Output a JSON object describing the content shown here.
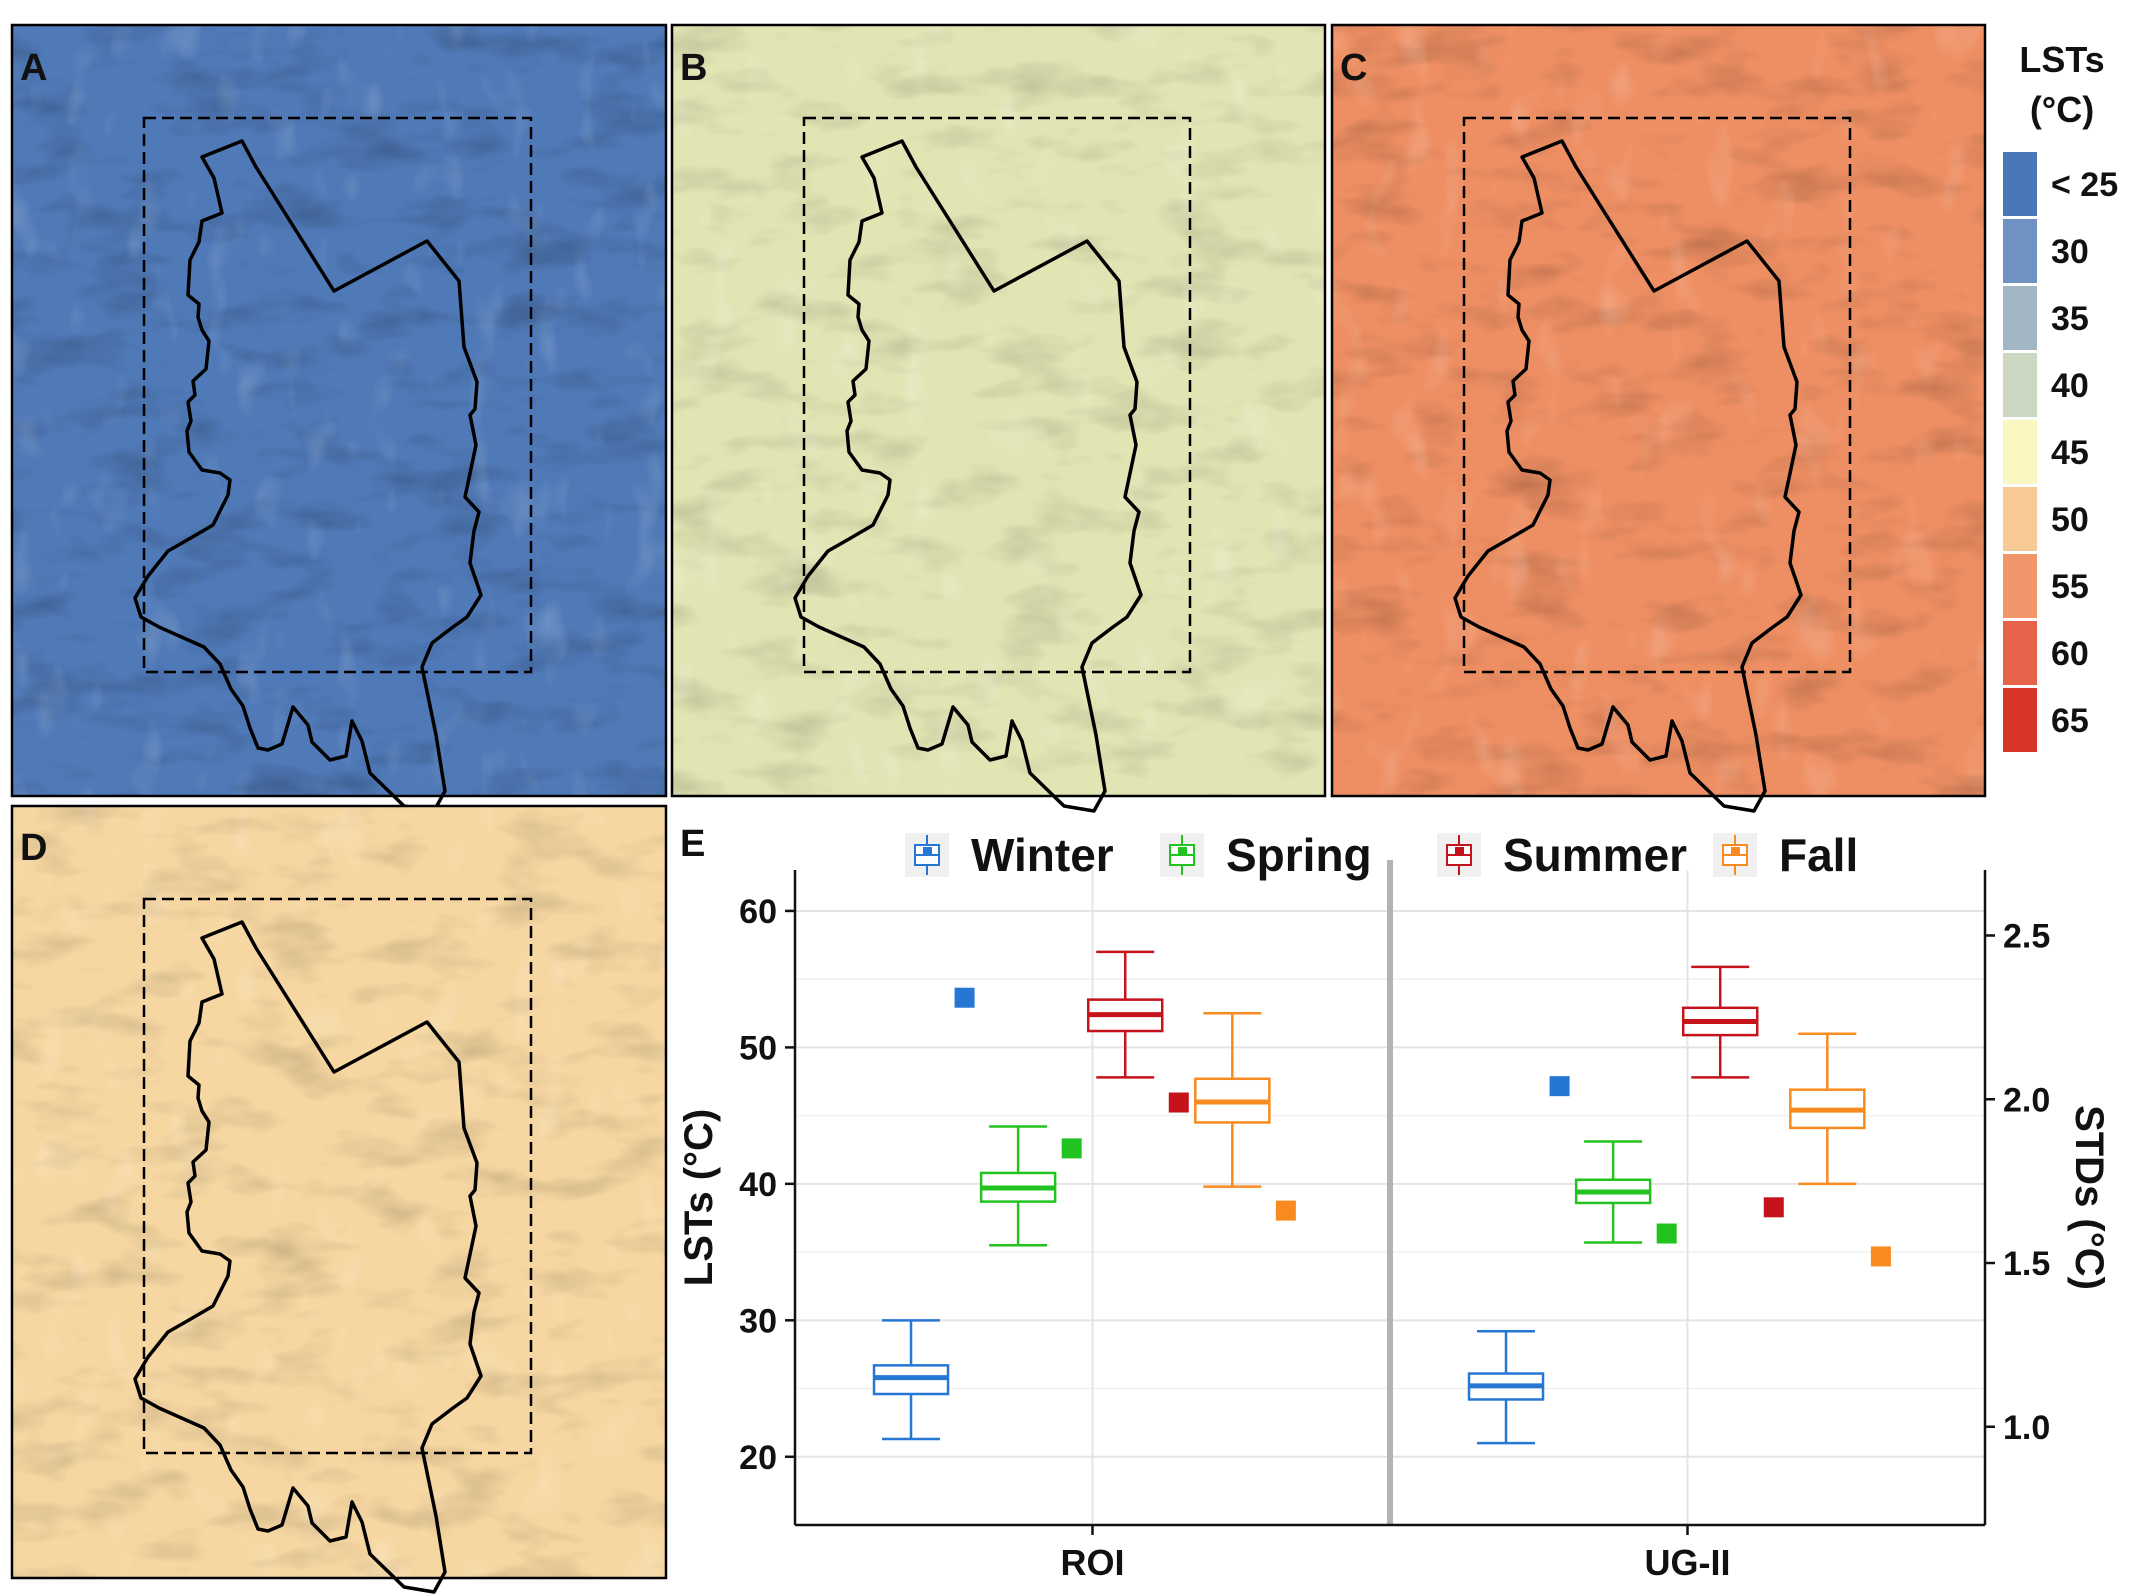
{
  "panels": {
    "a": {
      "letter": "A"
    },
    "b": {
      "letter": "B"
    },
    "c": {
      "letter": "C"
    },
    "d": {
      "letter": "D"
    },
    "e": {
      "letter": "E"
    }
  },
  "colorbar": {
    "title_line1": "LSTs",
    "title_line2": "(°C)",
    "labels": [
      "< 25",
      "30",
      "35",
      "40",
      "45",
      "50",
      "55",
      "60",
      "65"
    ],
    "colors": [
      "#4a77b9",
      "#6f92c3",
      "#a3b6c4",
      "#ccd8c1",
      "#fbf7c3",
      "#f7c996",
      "#f0966a",
      "#e56348",
      "#d63528"
    ]
  },
  "map_colors": {
    "a": {
      "base": "#4f79b7",
      "dark": "#3f6db5",
      "light": "#8fa9c4"
    },
    "b": {
      "base": "#e2e4b4",
      "dark": "#b9c8be",
      "light": "#f6f1bd"
    },
    "c": {
      "base": "#ee8f63",
      "dark": "#e4664a",
      "light": "#f5c28e"
    },
    "d": {
      "base": "#f6d7a2",
      "dark": "#f0a36f",
      "light": "#f5e5b6"
    }
  },
  "chart_data": {
    "type": "box",
    "legend": [
      "Winter",
      "Spring",
      "Summer",
      "Fall"
    ],
    "legend_position": "top",
    "season_colors": {
      "Winter": "#2677d4",
      "Spring": "#22c31e",
      "Summer": "#c5121b",
      "Fall": "#f98a1f"
    },
    "facets": [
      "ROI",
      "UG-II"
    ],
    "ylabel_left": "LSTs (°C)",
    "ylabel_right": "STDs (°C)",
    "ylim_left": [
      15,
      63
    ],
    "yticks_left": [
      20,
      30,
      40,
      50,
      60
    ],
    "ylim_right": [
      0.7,
      2.7
    ],
    "yticks_right": [
      1.0,
      1.5,
      2.0,
      2.5
    ],
    "yticks_right_labels": [
      "1.0",
      "1.5",
      "2.0",
      "2.5"
    ],
    "grid": true,
    "boxes": [
      {
        "facet": "ROI",
        "season": "Winter",
        "whisker_low": 21.3,
        "q1": 24.6,
        "median": 25.8,
        "q3": 26.7,
        "whisker_high": 30.0,
        "std": 2.31
      },
      {
        "facet": "ROI",
        "season": "Spring",
        "whisker_low": 35.5,
        "q1": 38.7,
        "median": 39.7,
        "q3": 40.8,
        "whisker_high": 44.2,
        "std": 1.85
      },
      {
        "facet": "ROI",
        "season": "Summer",
        "whisker_low": 47.8,
        "q1": 51.2,
        "median": 52.4,
        "q3": 53.5,
        "whisker_high": 57.0,
        "std": 1.99
      },
      {
        "facet": "ROI",
        "season": "Fall",
        "whisker_low": 39.8,
        "q1": 44.5,
        "median": 46.0,
        "q3": 47.7,
        "whisker_high": 52.5,
        "std": 1.66
      },
      {
        "facet": "UG-II",
        "season": "Winter",
        "whisker_low": 21.0,
        "q1": 24.2,
        "median": 25.2,
        "q3": 26.1,
        "whisker_high": 29.2,
        "std": 2.04
      },
      {
        "facet": "UG-II",
        "season": "Spring",
        "whisker_low": 35.7,
        "q1": 38.6,
        "median": 39.4,
        "q3": 40.3,
        "whisker_high": 43.1,
        "std": 1.59
      },
      {
        "facet": "UG-II",
        "season": "Summer",
        "whisker_low": 47.8,
        "q1": 50.9,
        "median": 51.9,
        "q3": 52.9,
        "whisker_high": 55.9,
        "std": 1.67
      },
      {
        "facet": "UG-II",
        "season": "Fall",
        "whisker_low": 40.0,
        "q1": 44.1,
        "median": 45.4,
        "q3": 46.9,
        "whisker_high": 51.0,
        "std": 1.52
      }
    ]
  }
}
